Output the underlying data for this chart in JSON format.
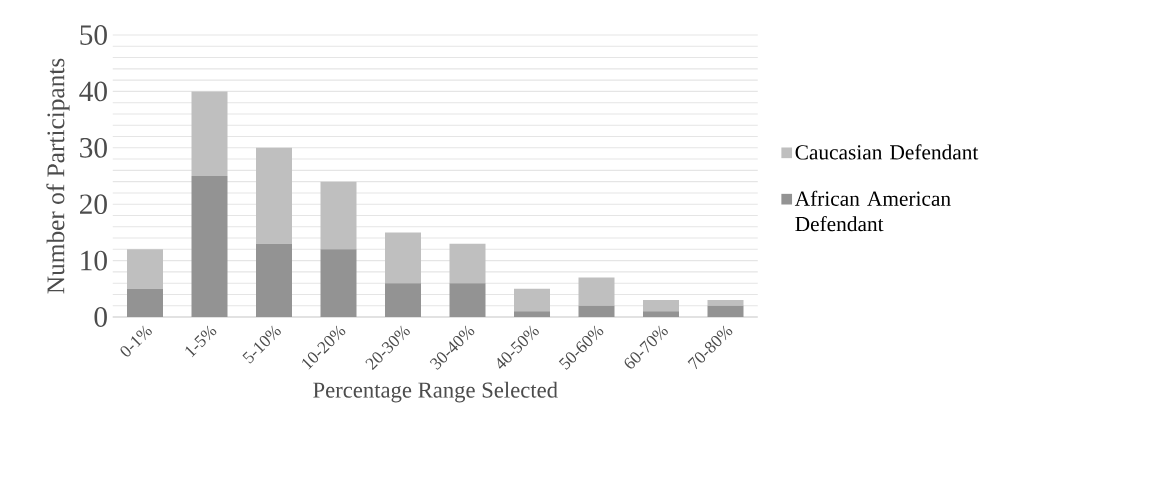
{
  "chart_data": {
    "type": "bar",
    "stacked": true,
    "xlabel": "Percentage Range Selected",
    "ylabel": "Number of Participants",
    "categories": [
      "0-1%",
      "1-5%",
      "5-10%",
      "10-20%",
      "20-30%",
      "30-40%",
      "40-50%",
      "50-60%",
      "60-70%",
      "70-80%"
    ],
    "series": [
      {
        "name": "African American Defendant",
        "color": "#939393",
        "values": [
          5,
          25,
          13,
          12,
          6,
          6,
          1,
          2,
          1,
          2
        ]
      },
      {
        "name": "Caucasian Defendant",
        "color": "#bfbfbf",
        "values": [
          7,
          15,
          17,
          12,
          9,
          7,
          4,
          5,
          2,
          1
        ]
      }
    ],
    "ylim": [
      0,
      50
    ],
    "yticks": [
      0,
      {
        "value": 2,
        "label": null
      },
      {
        "value": 4,
        "label": null
      },
      {
        "value": 6,
        "label": null
      },
      {
        "value": 8,
        "label": null
      },
      10,
      {
        "value": 12,
        "label": null
      },
      {
        "value": 14,
        "label": null
      },
      {
        "value": 16,
        "label": null
      },
      {
        "value": 18,
        "label": null
      },
      20,
      {
        "value": 22,
        "label": null
      },
      {
        "value": 24,
        "label": null
      },
      {
        "value": 26,
        "label": null
      },
      {
        "value": 28,
        "label": null
      },
      30,
      {
        "value": 32,
        "label": null
      },
      {
        "value": 34,
        "label": null
      },
      {
        "value": 36,
        "label": null
      },
      {
        "value": 38,
        "label": null
      },
      40,
      {
        "value": 42,
        "label": null
      },
      {
        "value": 44,
        "label": null
      },
      {
        "value": 46,
        "label": null
      },
      {
        "value": 48,
        "label": null
      },
      50
    ],
    "grid": "y",
    "legend": "right"
  }
}
